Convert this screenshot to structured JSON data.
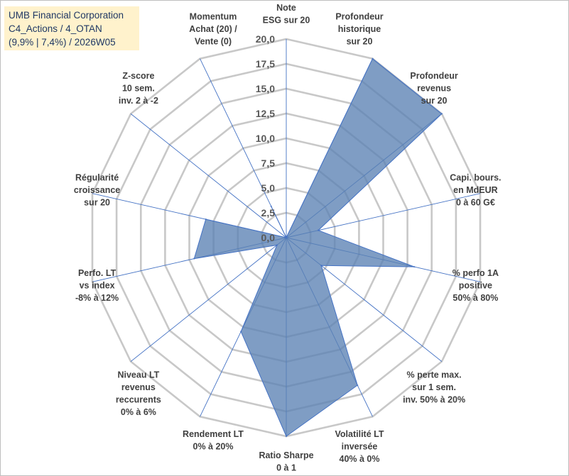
{
  "title": {
    "lines": [
      "UMB Financial Corporation",
      "C4_Actions / 4_OTAN",
      "(9,9% | 7,4%) / 2026W05"
    ]
  },
  "chart_data": {
    "type": "radar",
    "title": "UMB Financial Corporation C4_Actions / 4_OTAN (9,9% | 7,4%) / 2026W05",
    "rlim": [
      0,
      20
    ],
    "ticks": [
      0,
      2.5,
      5,
      7.5,
      10,
      12.5,
      15,
      17.5,
      20
    ],
    "tick_labels": [
      "0,0",
      "2,5",
      "5,0",
      "7,5",
      "10,0",
      "12,5",
      "15,0",
      "17,5",
      "20,0"
    ],
    "grid": true,
    "legend": "none",
    "fill_color": "#5b82b4",
    "fill_opacity": 0.78,
    "stroke_color": "#4472c4",
    "grid_color": "#c8c8c8",
    "spoke_color": "#4472c4",
    "categories": [
      [
        "Note",
        "ESG sur 20"
      ],
      [
        "Profondeur",
        "historique",
        "sur 20"
      ],
      [
        "Profondeur",
        "revenus",
        "sur 20"
      ],
      [
        "Capi. bours.",
        "en MdEUR",
        "0 à 60 G€"
      ],
      [
        "% perfo 1A",
        "positive",
        "50% à 80%"
      ],
      [
        "% perte max.",
        "sur 1 sem.",
        "inv. 50% à 20%"
      ],
      [
        "Volatilité LT",
        "inversée",
        "40% à 0%"
      ],
      [
        "Ratio Sharpe",
        "0 à 1"
      ],
      [
        "Rendement LT",
        "0% à 20%"
      ],
      [
        "Niveau LT",
        "revenus",
        "reccurents",
        "0% à 6%"
      ],
      [
        "Perfo. LT",
        "vs index",
        "-8% à 12%"
      ],
      [
        "Régularité",
        "croissance",
        "sur 20"
      ],
      [
        "Z-score",
        "10 sem.",
        "inv. 2 à -2"
      ],
      [
        "Momentum",
        "Achat (20) /",
        "Vente (0)"
      ]
    ],
    "values": [
      0,
      20,
      20,
      3.3,
      13.2,
      4.5,
      16.5,
      20,
      10.5,
      1.2,
      9.5,
      8.3,
      0,
      3.5
    ]
  }
}
